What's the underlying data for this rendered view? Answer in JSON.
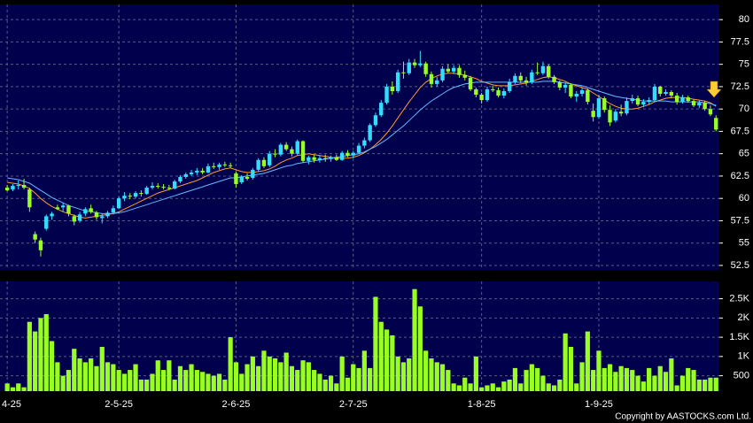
{
  "chart_data": {
    "type": "candlestick",
    "categories": [
      "4-25",
      null,
      null,
      null,
      null,
      null,
      null,
      null,
      null,
      null,
      null,
      null,
      null,
      null,
      null,
      null,
      null,
      null,
      null,
      null,
      "2-5-25",
      null,
      null,
      null,
      null,
      null,
      null,
      null,
      null,
      null,
      null,
      null,
      null,
      null,
      null,
      null,
      null,
      null,
      null,
      null,
      null,
      "2-6-25",
      null,
      null,
      null,
      null,
      null,
      null,
      null,
      null,
      null,
      null,
      null,
      null,
      null,
      null,
      null,
      null,
      null,
      null,
      null,
      null,
      "2-7-25",
      null,
      null,
      null,
      null,
      null,
      null,
      null,
      null,
      null,
      null,
      null,
      null,
      null,
      null,
      null,
      null,
      null,
      null,
      null,
      null,
      null,
      null,
      "1-8-25",
      null,
      null,
      null,
      null,
      null,
      null,
      null,
      null,
      null,
      null,
      null,
      null,
      null,
      null,
      null,
      null,
      null,
      null,
      null,
      null,
      "1-9-25",
      null,
      null,
      null,
      null,
      null,
      null,
      null,
      null,
      null,
      null,
      null,
      null,
      null,
      null,
      null,
      null,
      null,
      null,
      null,
      null,
      null
    ],
    "ohlc": [
      [
        61.2,
        61.5,
        60.8,
        60.9
      ],
      [
        61,
        61.6,
        60.8,
        61.4
      ],
      [
        61.4,
        62,
        61,
        61.5
      ],
      [
        61.5,
        62.2,
        61,
        61.2
      ],
      [
        61,
        61.2,
        58.5,
        59
      ],
      [
        56,
        56.3,
        55,
        55.4
      ],
      [
        55.3,
        55.6,
        53.5,
        54.2
      ],
      [
        56.6,
        58.2,
        56.4,
        58
      ],
      [
        58,
        58.5,
        57.6,
        58.3
      ],
      [
        59,
        59.3,
        58.7,
        58.8
      ],
      [
        59,
        59.5,
        58.5,
        59.2
      ],
      [
        59.2,
        59.3,
        58,
        58.3
      ],
      [
        58,
        58.2,
        57,
        57.4
      ],
      [
        57.5,
        58.5,
        57.3,
        58.2
      ],
      [
        58.3,
        59,
        58,
        58.8
      ],
      [
        58.9,
        59.3,
        58.3,
        58.5
      ],
      [
        58.4,
        58.6,
        57.6,
        57.9
      ],
      [
        57.8,
        58.3,
        57.2,
        58
      ],
      [
        58,
        58.6,
        57.8,
        58.4
      ],
      [
        58.4,
        59.2,
        58.2,
        58.9
      ],
      [
        58.9,
        60.2,
        58.8,
        60
      ],
      [
        60,
        60.7,
        59.7,
        60.3
      ],
      [
        60.3,
        60.6,
        59.9,
        60.2
      ],
      [
        60.2,
        60.8,
        60,
        60.6
      ],
      [
        60.6,
        60.9,
        60.2,
        60.5
      ],
      [
        60.5,
        61.4,
        60.4,
        61.2
      ],
      [
        61.2,
        61.8,
        61,
        61.4
      ],
      [
        61.4,
        61.7,
        61.1,
        61.3
      ],
      [
        61.3,
        61.6,
        61,
        61.2
      ],
      [
        61.2,
        61.5,
        60.9,
        61.1
      ],
      [
        61.1,
        62.1,
        61,
        61.9
      ],
      [
        61.9,
        62.6,
        61.7,
        62.4
      ],
      [
        62.4,
        62.9,
        62.2,
        62.7
      ],
      [
        62.7,
        63.2,
        62.5,
        62.9
      ],
      [
        62.9,
        63.4,
        62.6,
        63.1
      ],
      [
        63.1,
        63.4,
        62.7,
        62.9
      ],
      [
        62.9,
        63.9,
        62.8,
        63.6
      ],
      [
        63.6,
        64,
        63.3,
        63.5
      ],
      [
        63.5,
        64,
        63.2,
        63.8
      ],
      [
        63.8,
        64.1,
        63.5,
        63.7
      ],
      [
        63.7,
        64,
        63.4,
        63.6
      ],
      [
        62.8,
        63,
        61.2,
        61.6
      ],
      [
        61.8,
        62.6,
        61.6,
        62.4
      ],
      [
        62.4,
        62.8,
        62,
        62.2
      ],
      [
        62.3,
        63.4,
        62.1,
        63.2
      ],
      [
        63.2,
        64.5,
        63,
        64.3
      ],
      [
        64.3,
        64.6,
        63.4,
        63.6
      ],
      [
        63.7,
        65.3,
        63.5,
        65
      ],
      [
        65,
        65.5,
        64.6,
        64.9
      ],
      [
        64.9,
        66.2,
        64.7,
        66
      ],
      [
        66,
        66.3,
        65.3,
        65.5
      ],
      [
        65.5,
        65.8,
        64.7,
        65
      ],
      [
        65,
        66.6,
        64.8,
        66.4
      ],
      [
        66.4,
        66.5,
        64,
        64.2
      ],
      [
        64.2,
        64.8,
        63.8,
        64.6
      ],
      [
        64.6,
        64.9,
        64,
        64.3
      ],
      [
        64.3,
        64.8,
        64,
        64.5
      ],
      [
        64.5,
        64.9,
        64.1,
        64.4
      ],
      [
        64.4,
        64.8,
        64.1,
        64.6
      ],
      [
        64.6,
        64.9,
        64.2,
        64.3
      ],
      [
        64.3,
        65.3,
        64.2,
        65.1
      ],
      [
        65.1,
        65.4,
        64.6,
        64.8
      ],
      [
        64.8,
        65.3,
        64.5,
        65.1
      ],
      [
        65.1,
        66.2,
        65,
        65.9
      ],
      [
        65.9,
        66.8,
        65.6,
        66.5
      ],
      [
        66.5,
        68.4,
        66.3,
        68.2
      ],
      [
        68.2,
        69.6,
        68,
        69.3
      ],
      [
        69.3,
        71,
        69.1,
        70.7
      ],
      [
        70.7,
        72.8,
        70.5,
        72.5
      ],
      [
        72.5,
        73.1,
        71.6,
        72
      ],
      [
        72,
        74.4,
        71.8,
        74.1
      ],
      [
        74.1,
        75.3,
        73.4,
        74
      ],
      [
        74,
        75.6,
        73.8,
        75.2
      ],
      [
        75.2,
        75.6,
        74.6,
        74.9
      ],
      [
        74.9,
        76.5,
        74.7,
        75.1
      ],
      [
        75.1,
        75.3,
        73.6,
        73.9
      ],
      [
        73.9,
        74.2,
        72.4,
        72.8
      ],
      [
        72.8,
        73.6,
        72.5,
        73.2
      ],
      [
        73.2,
        74.8,
        73,
        74.5
      ],
      [
        74.5,
        75,
        74,
        74.2
      ],
      [
        74.2,
        74.9,
        73.9,
        74.6
      ],
      [
        74.6,
        74.9,
        73.5,
        73.8
      ],
      [
        73.8,
        74.3,
        73.2,
        73.5
      ],
      [
        73.5,
        73.7,
        72,
        72.2
      ],
      [
        72.2,
        72.4,
        71.3,
        71.6
      ],
      [
        71.6,
        71.8,
        70.6,
        71
      ],
      [
        71,
        72.5,
        70.8,
        72.2
      ],
      [
        72.2,
        72.6,
        71.9,
        72.1
      ],
      [
        72.1,
        72.4,
        71.3,
        71.5
      ],
      [
        71.5,
        72.3,
        71.2,
        72
      ],
      [
        72,
        73.4,
        71.8,
        73
      ],
      [
        73,
        74,
        72.8,
        73.7
      ],
      [
        73.7,
        74.1,
        72.9,
        73.2
      ],
      [
        73.2,
        73.6,
        72.6,
        73
      ],
      [
        73,
        74.4,
        72.8,
        74.1
      ],
      [
        74.1,
        75.2,
        73.8,
        74
      ],
      [
        74,
        75.3,
        73.8,
        74.8
      ],
      [
        74.8,
        75,
        73.4,
        73.6
      ],
      [
        73.6,
        73.8,
        72.8,
        73
      ],
      [
        73,
        73.2,
        72.1,
        72.4
      ],
      [
        72.4,
        73,
        71.8,
        72.7
      ],
      [
        72.7,
        72.9,
        71.2,
        71.4
      ],
      [
        71.4,
        72,
        70.8,
        71.7
      ],
      [
        71.7,
        72.4,
        71.4,
        72.1
      ],
      [
        72.1,
        72.3,
        70.5,
        70.8
      ],
      [
        69.8,
        70.6,
        68.6,
        69.1
      ],
      [
        69.1,
        71.6,
        68.9,
        71.2
      ],
      [
        71.2,
        71.4,
        69.6,
        69.9
      ],
      [
        69.9,
        70.4,
        68.1,
        68.5
      ],
      [
        68.7,
        70,
        68.5,
        69.7
      ],
      [
        69.7,
        70.5,
        69.2,
        69.5
      ],
      [
        69.5,
        71.3,
        69.3,
        70.9
      ],
      [
        70.9,
        71.6,
        70.6,
        71.2
      ],
      [
        71.2,
        71.5,
        70.3,
        70.5
      ],
      [
        70.5,
        71.1,
        70.2,
        70.8
      ],
      [
        70.8,
        71.3,
        70.5,
        71
      ],
      [
        71,
        72.8,
        70.9,
        72.5
      ],
      [
        72.5,
        72.6,
        71.4,
        71.7
      ],
      [
        71.7,
        72.2,
        71.5,
        71.9
      ],
      [
        71.9,
        72.1,
        71.2,
        71.5
      ],
      [
        71.5,
        71.8,
        70.5,
        70.8
      ],
      [
        70.8,
        71.6,
        70.6,
        71.3
      ],
      [
        71.3,
        71.5,
        70.7,
        70.9
      ],
      [
        70.9,
        71.1,
        70.2,
        70.4
      ],
      [
        70.4,
        71,
        70.1,
        70.7
      ],
      [
        70.7,
        70.9,
        69.8,
        70
      ],
      [
        70,
        70.4,
        69.2,
        69.4
      ],
      [
        69,
        69.3,
        67.5,
        67.7
      ]
    ],
    "up_color": "#33ddff",
    "down_color": "#99ff22",
    "ylim": [
      52,
      81.7
    ],
    "yticks": [
      52.5,
      55,
      57.5,
      60,
      62.5,
      65,
      67.5,
      70,
      72.5,
      75,
      77.5,
      80
    ],
    "grid": true,
    "moving_averages": [
      {
        "color": "#ff9933",
        "values": [
          61.8,
          61.7,
          61.6,
          61.4,
          61.1,
          60.6,
          60,
          59.5,
          59.1,
          58.8,
          58.5,
          58.3,
          58.1,
          57.9,
          57.8,
          57.9,
          58,
          58.1,
          58.2,
          58.3,
          58.5,
          58.8,
          59.1,
          59.4,
          59.7,
          60,
          60.3,
          60.6,
          60.8,
          61,
          61.2,
          61.4,
          61.6,
          61.8,
          62,
          62.3,
          62.6,
          62.9,
          63.1,
          63.3,
          63.4,
          63.2,
          63,
          62.9,
          62.9,
          63,
          63.1,
          63.3,
          63.6,
          64,
          64.3,
          64.5,
          64.8,
          64.9,
          65,
          64.9,
          64.8,
          64.7,
          64.6,
          64.5,
          64.5,
          64.5,
          64.6,
          64.8,
          65.1,
          65.5,
          66,
          66.6,
          67.3,
          68.1,
          69,
          69.9,
          70.8,
          71.6,
          72.4,
          73,
          73.4,
          73.7,
          73.9,
          74,
          74,
          73.9,
          73.8,
          73.6,
          73.4,
          73.1,
          72.9,
          72.7,
          72.6,
          72.6,
          72.6,
          72.7,
          72.8,
          72.9,
          73.1,
          73.3,
          73.5,
          73.6,
          73.5,
          73.3,
          73.1,
          72.8,
          72.6,
          72.4,
          72.2,
          71.8,
          71.4,
          71,
          70.6,
          70.3,
          70.1,
          70,
          70,
          70.1,
          70.3,
          70.5,
          70.8,
          71,
          71.2,
          71.3,
          71.3,
          71.3,
          71.2,
          71.1,
          71,
          70.9,
          70.7,
          70.3
        ]
      },
      {
        "color": "#66bbff",
        "values": [
          62.3,
          62.2,
          62.1,
          61.9,
          61.7,
          61.3,
          60.9,
          60.5,
          60.1,
          59.8,
          59.5,
          59.2,
          59,
          58.8,
          58.6,
          58.5,
          58.4,
          58.3,
          58.3,
          58.3,
          58.4,
          58.5,
          58.7,
          58.9,
          59.1,
          59.3,
          59.5,
          59.7,
          59.9,
          60.1,
          60.3,
          60.5,
          60.7,
          60.9,
          61.1,
          61.3,
          61.5,
          61.7,
          61.9,
          62.1,
          62.3,
          62.3,
          62.4,
          62.5,
          62.6,
          62.7,
          62.8,
          63,
          63.2,
          63.4,
          63.6,
          63.7,
          63.9,
          64,
          64.1,
          64.2,
          64.3,
          64.4,
          64.5,
          64.6,
          64.7,
          64.8,
          64.9,
          65,
          65.2,
          65.5,
          65.8,
          66.2,
          66.6,
          67.1,
          67.6,
          68.1,
          68.7,
          69.3,
          69.9,
          70.4,
          70.9,
          71.3,
          71.7,
          72.1,
          72.4,
          72.6,
          72.8,
          72.9,
          73,
          73,
          73,
          73,
          73,
          73,
          73,
          73,
          73,
          73,
          73,
          73,
          73.1,
          73.1,
          73.1,
          73,
          72.9,
          72.8,
          72.7,
          72.6,
          72.4,
          72.2,
          72,
          71.8,
          71.6,
          71.4,
          71.3,
          71.2,
          71.1,
          71,
          70.9,
          70.9,
          70.9,
          70.9,
          70.9,
          70.8,
          70.8,
          70.8,
          70.8,
          70.8,
          70.8,
          70.7,
          70.6,
          70.4
        ]
      }
    ],
    "volume": {
      "color": "#99ff22",
      "values": [
        300,
        200,
        300,
        200,
        1900,
        1650,
        2000,
        2100,
        1400,
        850,
        500,
        650,
        1200,
        950,
        850,
        950,
        750,
        1250,
        850,
        800,
        650,
        550,
        650,
        800,
        400,
        400,
        550,
        900,
        650,
        900,
        400,
        750,
        650,
        800,
        650,
        600,
        550,
        500,
        550,
        400,
        1500,
        850,
        550,
        800,
        1000,
        750,
        1150,
        1000,
        950,
        850,
        1100,
        750,
        650,
        900,
        850,
        650,
        550,
        400,
        500,
        300,
        1000,
        450,
        800,
        700,
        1150,
        700,
        2550,
        1900,
        1700,
        1550,
        1000,
        850,
        950,
        2750,
        2300,
        1150,
        950,
        850,
        800,
        650,
        300,
        250,
        450,
        300,
        1000,
        200,
        250,
        300,
        200,
        350,
        400,
        700,
        300,
        650,
        800,
        700,
        500,
        300,
        250,
        400,
        1600,
        1250,
        300,
        850,
        1650,
        650,
        1150,
        700,
        800,
        600,
        750,
        700,
        650,
        500,
        350,
        700,
        500,
        750,
        600,
        950,
        250,
        500,
        700,
        650,
        400,
        400,
        450,
        450
      ],
      "ylim": [
        100,
        2950
      ],
      "yticks": [
        500,
        {
          "value": 1000,
          "label": "1K"
        },
        {
          "value": 1500,
          "label": "1.5K"
        },
        {
          "value": 2000,
          "label": "2K"
        },
        {
          "value": 2500,
          "label": "2.5K"
        }
      ]
    },
    "copyright": "Copyright by AASTOCKS.com Ltd."
  }
}
